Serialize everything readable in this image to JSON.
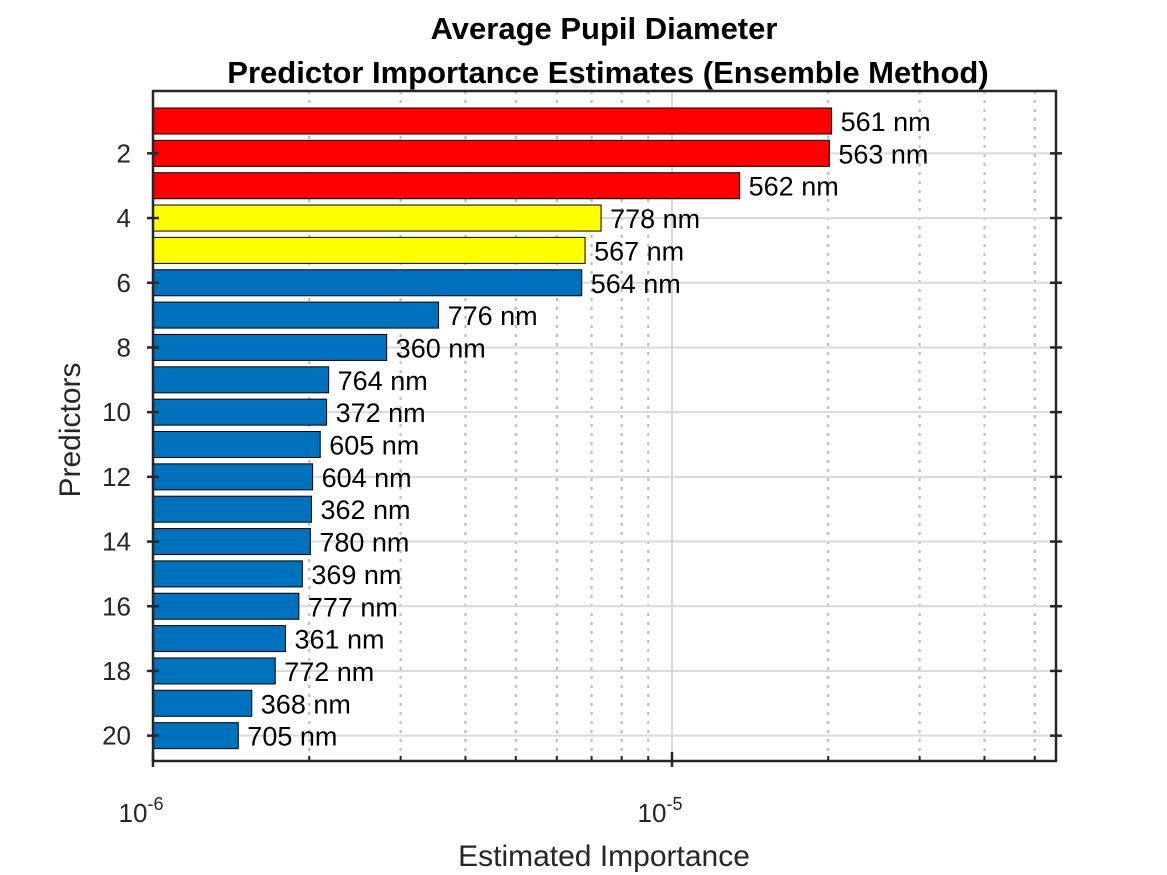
{
  "chart_data": {
    "type": "bar",
    "orientation": "horizontal",
    "title": "Average Pupil Diameter",
    "subtitle": "Predictor Importance Estimates (Ensemble Method)",
    "xlabel": "Estimated Importance",
    "ylabel": "Predictors",
    "xscale": "log",
    "xlim": [
      1e-06,
      5e-05
    ],
    "ylim": [
      0.5,
      20.8
    ],
    "grid": true,
    "x_ticks": [
      {
        "base": "10",
        "exp": "-6",
        "value": 1e-06
      },
      {
        "base": "10",
        "exp": "-5",
        "value": 1e-05
      }
    ],
    "y_ticks": [
      "2",
      "4",
      "6",
      "8",
      "10",
      "12",
      "14",
      "16",
      "18",
      "20"
    ],
    "y_tick_values": [
      2,
      4,
      6,
      8,
      10,
      12,
      14,
      16,
      18,
      20
    ],
    "bars": [
      {
        "predictor": 1,
        "label": "561 nm",
        "value": 2.03e-05,
        "color": "#ff0000"
      },
      {
        "predictor": 2,
        "label": "563 nm",
        "value": 2.01e-05,
        "color": "#ff0000"
      },
      {
        "predictor": 3,
        "label": "562 nm",
        "value": 1.35e-05,
        "color": "#ff0000"
      },
      {
        "predictor": 4,
        "label": "778 nm",
        "value": 7.3e-06,
        "color": "#ffff00"
      },
      {
        "predictor": 5,
        "label": "567 nm",
        "value": 6.8e-06,
        "color": "#ffff00"
      },
      {
        "predictor": 6,
        "label": "564 nm",
        "value": 6.7e-06,
        "color": "#0072bd"
      },
      {
        "predictor": 7,
        "label": "776 nm",
        "value": 3.55e-06,
        "color": "#0072bd"
      },
      {
        "predictor": 8,
        "label": "360 nm",
        "value": 2.82e-06,
        "color": "#0072bd"
      },
      {
        "predictor": 9,
        "label": "764 nm",
        "value": 2.18e-06,
        "color": "#0072bd"
      },
      {
        "predictor": 10,
        "label": "372 nm",
        "value": 2.16e-06,
        "color": "#0072bd"
      },
      {
        "predictor": 11,
        "label": "605 nm",
        "value": 2.1e-06,
        "color": "#0072bd"
      },
      {
        "predictor": 12,
        "label": "604 nm",
        "value": 2.03e-06,
        "color": "#0072bd"
      },
      {
        "predictor": 13,
        "label": "362 nm",
        "value": 2.02e-06,
        "color": "#0072bd"
      },
      {
        "predictor": 14,
        "label": "780 nm",
        "value": 2.01e-06,
        "color": "#0072bd"
      },
      {
        "predictor": 15,
        "label": "369 nm",
        "value": 1.94e-06,
        "color": "#0072bd"
      },
      {
        "predictor": 16,
        "label": "777 nm",
        "value": 1.91e-06,
        "color": "#0072bd"
      },
      {
        "predictor": 17,
        "label": "361 nm",
        "value": 1.8e-06,
        "color": "#0072bd"
      },
      {
        "predictor": 18,
        "label": "772 nm",
        "value": 1.72e-06,
        "color": "#0072bd"
      },
      {
        "predictor": 19,
        "label": "368 nm",
        "value": 1.55e-06,
        "color": "#0072bd"
      },
      {
        "predictor": 20,
        "label": "705 nm",
        "value": 1.46e-06,
        "color": "#0072bd"
      }
    ]
  }
}
